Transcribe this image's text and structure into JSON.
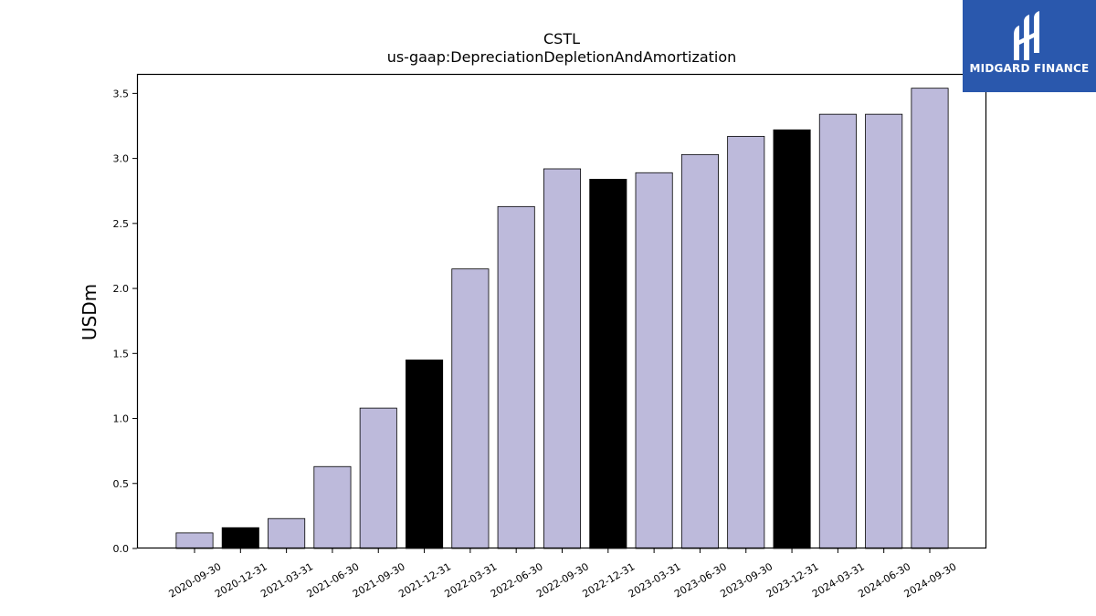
{
  "chart_data": {
    "type": "bar",
    "title": "CSTL",
    "subtitle": "us-gaap:DepreciationDepletionAndAmortization",
    "xlabel": "",
    "ylabel": "USDm",
    "ylim": [
      0,
      3.65
    ],
    "yticks": [
      "0.0",
      "0.5",
      "1.0",
      "1.5",
      "2.0",
      "2.5",
      "3.0",
      "3.5"
    ],
    "grid": false,
    "categories": [
      "2020-09-30",
      "2020-12-31",
      "2021-03-31",
      "2021-06-30",
      "2021-09-30",
      "2021-12-31",
      "2022-03-31",
      "2022-06-30",
      "2022-09-30",
      "2022-12-31",
      "2023-03-31",
      "2023-06-30",
      "2023-09-30",
      "2023-12-31",
      "2024-03-31",
      "2024-06-30",
      "2024-09-30"
    ],
    "values": [
      0.12,
      0.16,
      0.23,
      0.63,
      1.08,
      1.45,
      2.15,
      2.63,
      2.92,
      2.84,
      2.89,
      3.03,
      3.17,
      3.22,
      3.34,
      3.34,
      3.54
    ],
    "highlighted": [
      false,
      true,
      false,
      false,
      false,
      true,
      false,
      false,
      false,
      true,
      false,
      false,
      false,
      true,
      false,
      false,
      false
    ],
    "colors": {
      "normal": "#bdbadb",
      "highlight": "#000000",
      "edge": "#000000"
    }
  },
  "logo": {
    "text": "MIDGARD FINANCE",
    "background": "#2a58ad"
  }
}
